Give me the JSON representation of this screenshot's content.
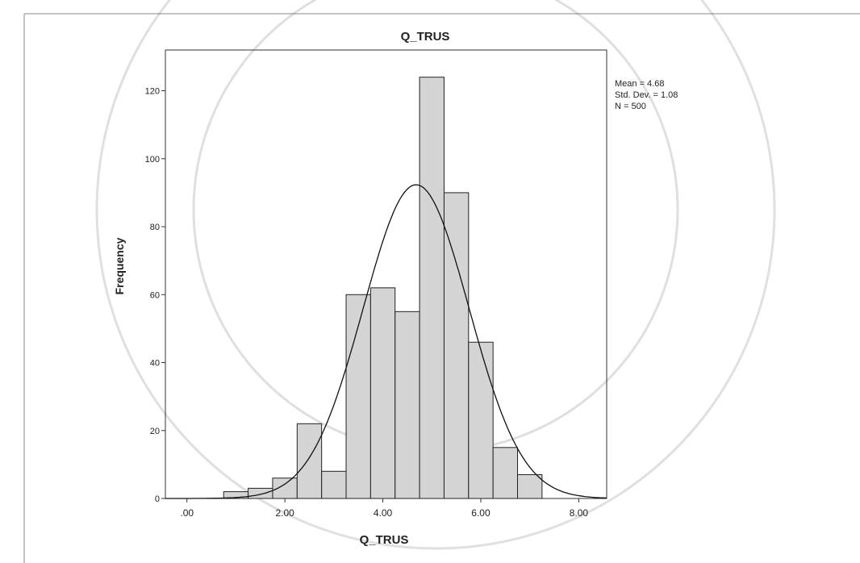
{
  "chart_data": {
    "type": "histogram",
    "title": "Q_TRUS",
    "x_label": "Q_TRUS",
    "y_label": "Frequency",
    "bins": [
      0.75,
      1.25,
      1.75,
      2.25,
      2.75,
      3.25,
      3.75,
      4.25,
      4.75,
      5.25,
      5.75,
      6.25,
      6.75,
      7.25
    ],
    "values": [
      2,
      3,
      6,
      22,
      8,
      60,
      62,
      55,
      124,
      90,
      46,
      15,
      7
    ],
    "color": "#d4d4d4",
    "xlim": [
      -0.44,
      8.57
    ],
    "xticks": [
      {
        "value": 0,
        "label": ".00"
      },
      {
        "value": 2,
        "label": "2.00"
      },
      {
        "value": 4,
        "label": "4.00"
      },
      {
        "value": 6,
        "label": "6.00"
      },
      {
        "value": 8,
        "label": "8.00"
      }
    ],
    "ylim": [
      0,
      132
    ],
    "yticks": [
      0,
      20,
      40,
      60,
      80,
      100,
      120
    ],
    "normal_curve": {
      "mean": 4.68,
      "std_dev": 1.08,
      "n": 500
    },
    "annotations": [
      "Mean = 4.68",
      "Std. Dev. = 1.08",
      "N = 500"
    ]
  }
}
